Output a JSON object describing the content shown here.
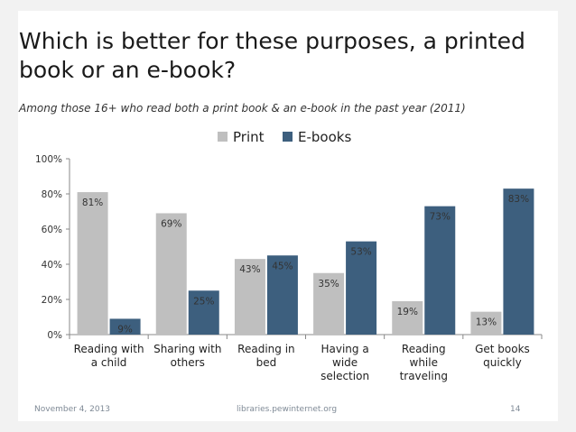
{
  "slide": {
    "title": "Which is better for these purposes, a printed book or an e-book?",
    "subtitle": "Among those 16+ who read both a print book & an e-book in the past year (2011)",
    "footer_date": "November 4, 2013",
    "footer_source": "libraries.pewinternet.org",
    "footer_page": "14"
  },
  "colors": {
    "print": "#bfbfbf",
    "ebooks": "#3d5f7e",
    "background": "#f2f2f2"
  },
  "chart_data": {
    "type": "bar",
    "categories": [
      [
        "Reading with",
        "a child"
      ],
      [
        "Sharing with",
        "others"
      ],
      [
        "Reading in",
        "bed"
      ],
      [
        "Having a",
        "wide",
        "selection"
      ],
      [
        "Reading",
        "while",
        "traveling"
      ],
      [
        "Get books",
        "quickly"
      ]
    ],
    "series": [
      {
        "name": "Print",
        "values": [
          81,
          69,
          43,
          35,
          19,
          13
        ],
        "labels": [
          "81%",
          "69%",
          "43%",
          "35%",
          "19%",
          "13%"
        ]
      },
      {
        "name": "E-books",
        "values": [
          9,
          25,
          45,
          53,
          73,
          83
        ],
        "labels": [
          "9%",
          "25%",
          "45%",
          "53%",
          "73%",
          "83%"
        ]
      }
    ],
    "ylim": [
      0,
      100
    ],
    "yticks": [
      "0%",
      "20%",
      "40%",
      "60%",
      "80%",
      "100%"
    ],
    "legend_position": "top-center",
    "grid": false
  }
}
